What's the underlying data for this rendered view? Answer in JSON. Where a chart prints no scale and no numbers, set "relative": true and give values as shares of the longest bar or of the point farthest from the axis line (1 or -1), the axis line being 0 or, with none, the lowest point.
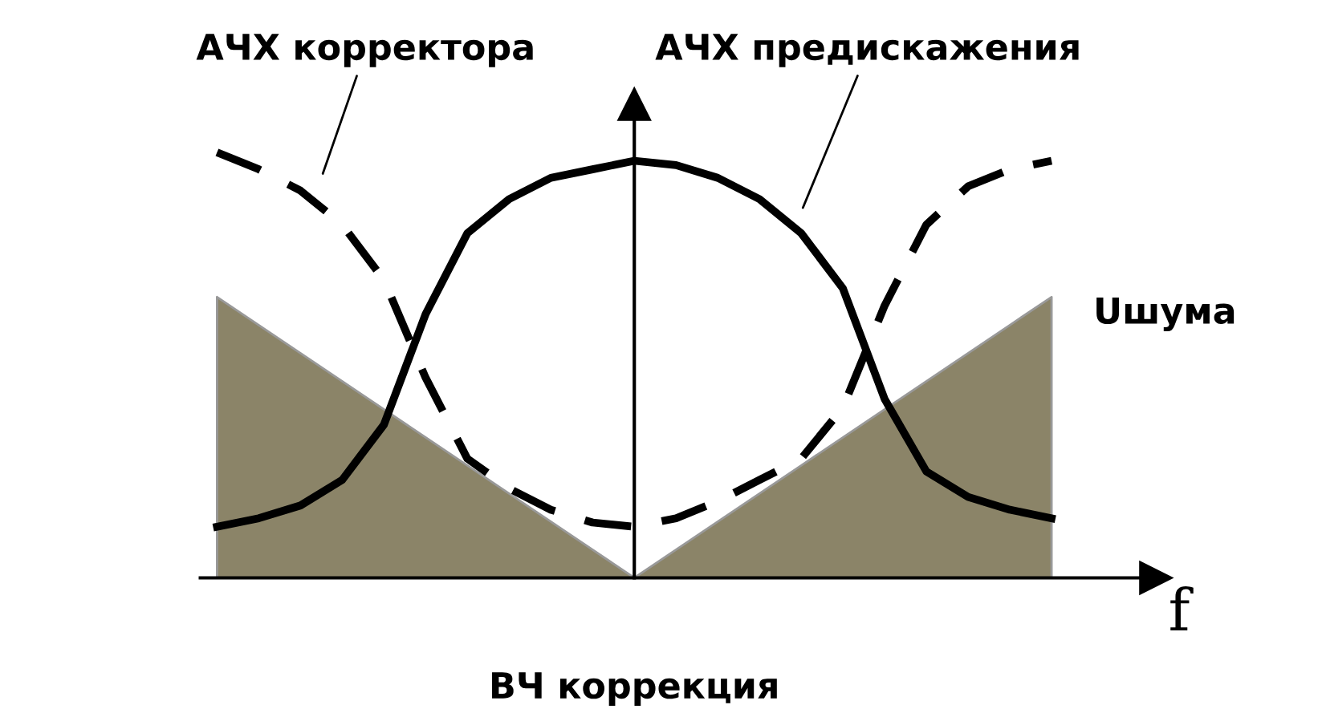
{
  "chart_data": {
    "type": "line",
    "relative": true,
    "xlabel": "f",
    "categories": [
      null,
      null,
      null,
      null,
      null,
      null,
      null,
      null,
      null,
      null,
      null,
      null,
      null,
      null,
      null,
      null,
      null,
      null,
      null,
      null,
      null
    ],
    "series": [
      {
        "type": "area",
        "color": "#8b8468",
        "values": [
          0.66,
          0.594,
          0.528,
          0.462,
          0.396,
          0.33,
          0.264,
          0.198,
          0.132,
          0.066,
          0,
          0.066,
          0.132,
          0.198,
          0.264,
          0.33,
          0.396,
          0.462,
          0.528,
          0.594,
          0.66
        ]
      },
      {
        "color": "#000000",
        "line_style": "solid",
        "values": [
          0.12,
          0.14,
          0.17,
          0.23,
          0.36,
          0.62,
          0.81,
          0.89,
          0.94,
          0.96,
          0.98,
          0.97,
          0.94,
          0.89,
          0.81,
          0.68,
          0.42,
          0.25,
          0.19,
          0.16,
          0.14
        ]
      },
      {
        "color": "#000000",
        "line_style": "dashed",
        "values": [
          1.0,
          0.96,
          0.91,
          0.83,
          0.7,
          0.47,
          0.28,
          0.21,
          0.16,
          0.13,
          0.12,
          0.14,
          0.18,
          0.23,
          0.28,
          0.4,
          0.64,
          0.83,
          0.92,
          0.96,
          0.98
        ]
      }
    ],
    "annotations": [
      "АЧХ корректора",
      "АЧХ предискажения",
      "Uшума",
      "ВЧ коррекция"
    ],
    "legend": false
  }
}
